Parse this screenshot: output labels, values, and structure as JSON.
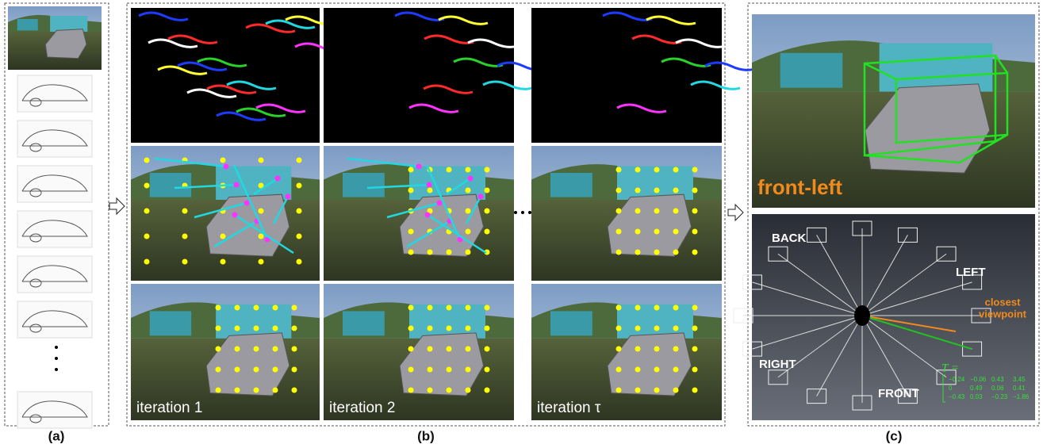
{
  "panels": {
    "a": {
      "label": "(a)"
    },
    "b": {
      "label": "(b)",
      "iterations": [
        "iteration 1",
        "iteration 2",
        "iteration τ"
      ]
    },
    "c": {
      "label": "(c)",
      "view_label": "front-left",
      "directions": [
        "BACK",
        "LEFT",
        "RIGHT",
        "FRONT"
      ],
      "closest": [
        "closest",
        "viewpoint"
      ],
      "matrix_label": "T =",
      "matrix": [
        [
          "−0.24",
          "−0.06",
          "0.43",
          "3.45"
        ],
        [
          "0",
          "0.49",
          "0.06",
          "0.41"
        ],
        [
          "−0.43",
          "0.03",
          "−0.23",
          "−1.86"
        ]
      ]
    }
  }
}
